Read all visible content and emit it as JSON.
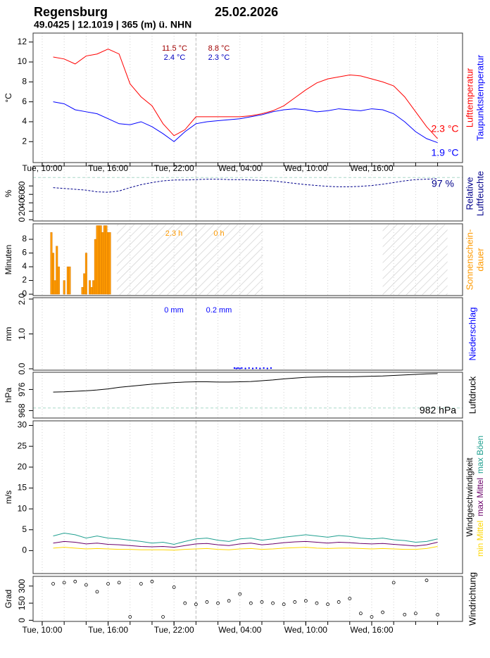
{
  "header": {
    "title": "Regensburg",
    "date": "25.02.2026",
    "subtitle": "49.0425 | 12.1019 | 365 (m) ü. NHN"
  },
  "time_axis": {
    "xlim": [
      9.17,
      48.27
    ],
    "xticks": [
      {
        "value": 10,
        "label": "Tue, 10:00"
      },
      {
        "value": 16,
        "label": "Tue, 16:00"
      },
      {
        "value": 22,
        "label": "Tue, 22:00"
      },
      {
        "value": 28,
        "label": "Wed, 04:00"
      },
      {
        "value": 34,
        "label": "Wed, 10:00"
      },
      {
        "value": 40,
        "label": "Wed, 16:00"
      }
    ],
    "xgrid": [
      10,
      12,
      14,
      16,
      18,
      20,
      22,
      24,
      26,
      28,
      30,
      32,
      34,
      36,
      38,
      40,
      42,
      44,
      46
    ],
    "day_line": 24
  },
  "chart_data": [
    {
      "type": "line",
      "ylabel": "°C",
      "ylim": [
        -0.1,
        12.9
      ],
      "yticks": [
        2,
        4,
        6,
        8,
        10,
        12
      ],
      "x": [
        11,
        12,
        13,
        14,
        15,
        16,
        17,
        18,
        19,
        20,
        21,
        22,
        23,
        24,
        25,
        26,
        27,
        28,
        29,
        30,
        31,
        32,
        33,
        34,
        35,
        36,
        37,
        38,
        39,
        40,
        41,
        42,
        43,
        44,
        45,
        46
      ],
      "series": [
        {
          "name": "Lufttemperatur",
          "color": "#ff0000",
          "values": [
            10.5,
            10.3,
            9.8,
            10.6,
            10.8,
            11.3,
            10.8,
            7.8,
            6.5,
            5.6,
            3.8,
            2.6,
            3.2,
            4.5,
            4.5,
            4.5,
            4.5,
            4.5,
            4.6,
            4.8,
            5.1,
            5.6,
            6.4,
            7.2,
            7.9,
            8.3,
            8.5,
            8.7,
            8.6,
            8.3,
            8.0,
            7.6,
            6.5,
            5.0,
            3.5,
            2.3
          ]
        },
        {
          "name": "Taupunktstemperatur",
          "color": "#0000ff",
          "values": [
            6.0,
            5.8,
            5.2,
            5.0,
            4.8,
            4.3,
            3.8,
            3.7,
            4.0,
            3.5,
            2.8,
            2.0,
            3.0,
            3.8,
            4.0,
            4.1,
            4.2,
            4.3,
            4.5,
            4.7,
            5.0,
            5.2,
            5.3,
            5.2,
            5.0,
            5.1,
            5.3,
            5.2,
            5.1,
            5.3,
            5.2,
            4.8,
            4.0,
            3.0,
            2.3,
            1.9
          ]
        }
      ],
      "annotations": [
        {
          "text": "11.5 °C",
          "color": "#a00000"
        },
        {
          "text": "2.4 °C",
          "color": "#0000c0"
        },
        {
          "text": "8.8 °C",
          "color": "#a00000"
        },
        {
          "text": "2.3 °C",
          "color": "#0000c0"
        }
      ],
      "current_labels": [
        {
          "text": "2.3 °C",
          "color": "#ff0000"
        },
        {
          "text": "1.9 °C",
          "color": "#0000ff"
        }
      ]
    },
    {
      "type": "line",
      "line_style": "dashed",
      "ylabel": "%",
      "ylim": [
        -3,
        127
      ],
      "yticks": [
        0,
        20,
        40,
        60,
        80
      ],
      "hlines": [
        100
      ],
      "x": [
        11,
        12,
        13,
        14,
        15,
        16,
        17,
        18,
        19,
        20,
        21,
        22,
        23,
        24,
        25,
        26,
        27,
        28,
        29,
        30,
        31,
        32,
        33,
        34,
        35,
        36,
        37,
        38,
        39,
        40,
        41,
        42,
        43,
        44,
        45,
        46
      ],
      "series": [
        {
          "name": [
            "Relative",
            "Luftfeuchte"
          ],
          "color": "#00008b",
          "values": [
            76,
            74,
            72,
            70,
            66,
            65,
            68,
            76,
            83,
            88,
            92,
            94,
            94,
            95,
            96,
            96,
            95,
            95,
            94,
            93,
            92,
            89,
            86,
            83,
            81,
            79,
            78,
            78,
            79,
            81,
            84,
            88,
            92,
            95,
            96,
            97
          ]
        }
      ],
      "current_labels": [
        {
          "text": "97 %",
          "color": "#00008b"
        }
      ]
    },
    {
      "type": "bar",
      "ylabel": "Minuten",
      "ylim": [
        -0.2,
        10.26
      ],
      "yticks": [
        0,
        2,
        4,
        6,
        8
      ],
      "x": [
        10.75,
        10.92,
        11.08,
        11.25,
        11.42,
        11.58,
        11.75,
        11.92,
        12.08,
        12.25,
        12.42,
        12.58,
        12.75,
        12.92,
        13.08,
        13.25,
        13.42,
        13.58,
        13.75,
        13.92,
        14.08,
        14.25,
        14.42,
        14.58,
        14.75,
        14.92,
        15.08,
        15.25,
        15.42,
        15.58,
        15.75,
        15.92,
        16.08,
        16.25,
        16.42
      ],
      "series": [
        {
          "name": [
            "Sonnenschein-",
            "dauer"
          ],
          "color": "#ff9a00",
          "values": [
            9,
            6,
            2,
            7,
            4,
            0,
            0,
            2,
            0,
            4,
            4,
            0,
            0,
            0,
            0,
            0,
            0,
            1,
            3,
            6,
            0,
            2,
            1,
            2,
            8,
            10,
            10,
            10,
            9,
            10,
            10,
            9,
            9,
            0,
            0
          ]
        }
      ],
      "shaded": [
        [
          16.8,
          30.1
        ],
        [
          41,
          46.9
        ]
      ],
      "annotations": [
        {
          "text": "2.3 h",
          "color": "#ff9a00"
        },
        {
          "text": "0 h",
          "color": "#ff9a00"
        }
      ]
    },
    {
      "type": "scatter",
      "ylabel": "mm",
      "ylim": [
        -0.04,
        2.04
      ],
      "yticks": [
        {
          "value": 0,
          "label": "0.0"
        },
        {
          "value": 1,
          "label": "1.0"
        },
        {
          "value": 2,
          "label": "2.0"
        }
      ],
      "x": [
        27.5,
        27.67,
        27.83,
        28.0,
        28.17,
        28.5,
        28.83,
        29.17,
        29.5,
        29.83,
        30.17,
        30.5,
        30.83
      ],
      "series": [
        {
          "name": "Niederschlag",
          "color": "#0000ff",
          "values": [
            0.02,
            0.01,
            0.02,
            0.01,
            0.02,
            0.01,
            0.02,
            0.01,
            0.02,
            0.01,
            0.02,
            0.01,
            0.02
          ]
        }
      ],
      "annotations": [
        {
          "text": "0 mm",
          "color": "#0000ff"
        },
        {
          "text": "0.2 mm",
          "color": "#0000ff"
        }
      ]
    },
    {
      "type": "line",
      "ylabel": "hPa",
      "ylim": [
        965.2,
        982.5
      ],
      "yticks": [
        968,
        976
      ],
      "hlines": [
        969
      ],
      "x": [
        11,
        12,
        13,
        14,
        15,
        16,
        17,
        18,
        19,
        20,
        21,
        22,
        23,
        24,
        25,
        26,
        27,
        28,
        29,
        30,
        31,
        32,
        33,
        34,
        35,
        36,
        37,
        38,
        39,
        40,
        41,
        42,
        43,
        44,
        45,
        46
      ],
      "series": [
        {
          "name": "Luftdruck",
          "color": "#000000",
          "values": [
            975.0,
            975.1,
            975.3,
            975.5,
            975.8,
            976.2,
            976.8,
            977.2,
            977.6,
            978.0,
            978.3,
            978.6,
            978.8,
            978.9,
            978.9,
            978.8,
            978.8,
            978.9,
            979.0,
            979.3,
            979.6,
            980.0,
            980.3,
            980.6,
            980.7,
            980.8,
            980.8,
            980.8,
            980.9,
            981.0,
            981.1,
            981.3,
            981.5,
            981.7,
            981.9,
            982.0
          ]
        }
      ],
      "current_labels": [
        {
          "text": "982 hPa",
          "color": "#000000"
        }
      ]
    },
    {
      "type": "line",
      "ylabel": "m/s",
      "right_label": "Windgeschwindigkeit",
      "ylim": [
        -5.5,
        31.1
      ],
      "yticks": [
        0,
        5,
        10,
        15,
        20,
        25,
        30
      ],
      "x": [
        11,
        12,
        13,
        14,
        15,
        16,
        17,
        18,
        19,
        20,
        21,
        22,
        23,
        24,
        25,
        26,
        27,
        28,
        29,
        30,
        31,
        32,
        33,
        34,
        35,
        36,
        37,
        38,
        39,
        40,
        41,
        42,
        43,
        44,
        45,
        46
      ],
      "series": [
        {
          "name": "min Mittel",
          "color": "#ffd700",
          "values": [
            0.6,
            0.8,
            0.6,
            0.4,
            0.5,
            0.4,
            0.3,
            0.3,
            0.2,
            0.2,
            0.2,
            0.1,
            0.3,
            0.4,
            0.5,
            0.3,
            0.2,
            0.4,
            0.5,
            0.3,
            0.4,
            0.6,
            0.7,
            0.8,
            0.6,
            0.5,
            0.6,
            0.6,
            0.5,
            0.4,
            0.5,
            0.4,
            0.3,
            0.3,
            0.5,
            1.0
          ]
        },
        {
          "name": "max Mittel",
          "color": "#6a006a",
          "values": [
            1.8,
            2.2,
            2.0,
            1.6,
            1.8,
            1.5,
            1.4,
            1.2,
            1.0,
            0.9,
            1.0,
            0.8,
            1.2,
            1.6,
            1.7,
            1.4,
            1.2,
            1.6,
            1.8,
            1.4,
            1.6,
            1.9,
            2.1,
            2.2,
            2.0,
            1.8,
            2.0,
            1.9,
            1.7,
            1.6,
            1.7,
            1.5,
            1.3,
            1.1,
            1.4,
            2.0
          ]
        },
        {
          "name": "max Böen",
          "color": "#20a090",
          "values": [
            3.5,
            4.2,
            3.8,
            3.0,
            3.5,
            3.0,
            2.8,
            2.5,
            2.2,
            1.8,
            2.0,
            1.5,
            2.2,
            2.8,
            3.0,
            2.5,
            2.2,
            2.8,
            3.0,
            2.5,
            2.8,
            3.2,
            3.5,
            3.8,
            3.5,
            3.2,
            3.6,
            3.4,
            3.0,
            2.8,
            3.0,
            2.6,
            2.4,
            2.0,
            2.2,
            2.8
          ]
        }
      ]
    },
    {
      "type": "scatter",
      "marker": "open",
      "ylabel": "Grad",
      "ylim": [
        -10,
        385
      ],
      "yticks": [
        0,
        150,
        300
      ],
      "x": [
        11,
        12,
        13,
        14,
        15,
        16,
        17,
        18,
        19,
        20,
        21,
        22,
        23,
        24,
        25,
        26,
        27,
        28,
        29,
        30,
        31,
        32,
        33,
        34,
        35,
        36,
        37,
        38,
        39,
        40,
        41,
        42,
        43,
        44,
        45,
        46
      ],
      "series": [
        {
          "name": "Windrichtung",
          "color": "#000000",
          "values": [
            320,
            330,
            340,
            310,
            250,
            320,
            330,
            30,
            320,
            340,
            30,
            290,
            150,
            140,
            160,
            150,
            170,
            230,
            150,
            160,
            150,
            140,
            160,
            170,
            150,
            140,
            160,
            190,
            60,
            30,
            70,
            330,
            50,
            60,
            350,
            50
          ]
        }
      ]
    }
  ]
}
